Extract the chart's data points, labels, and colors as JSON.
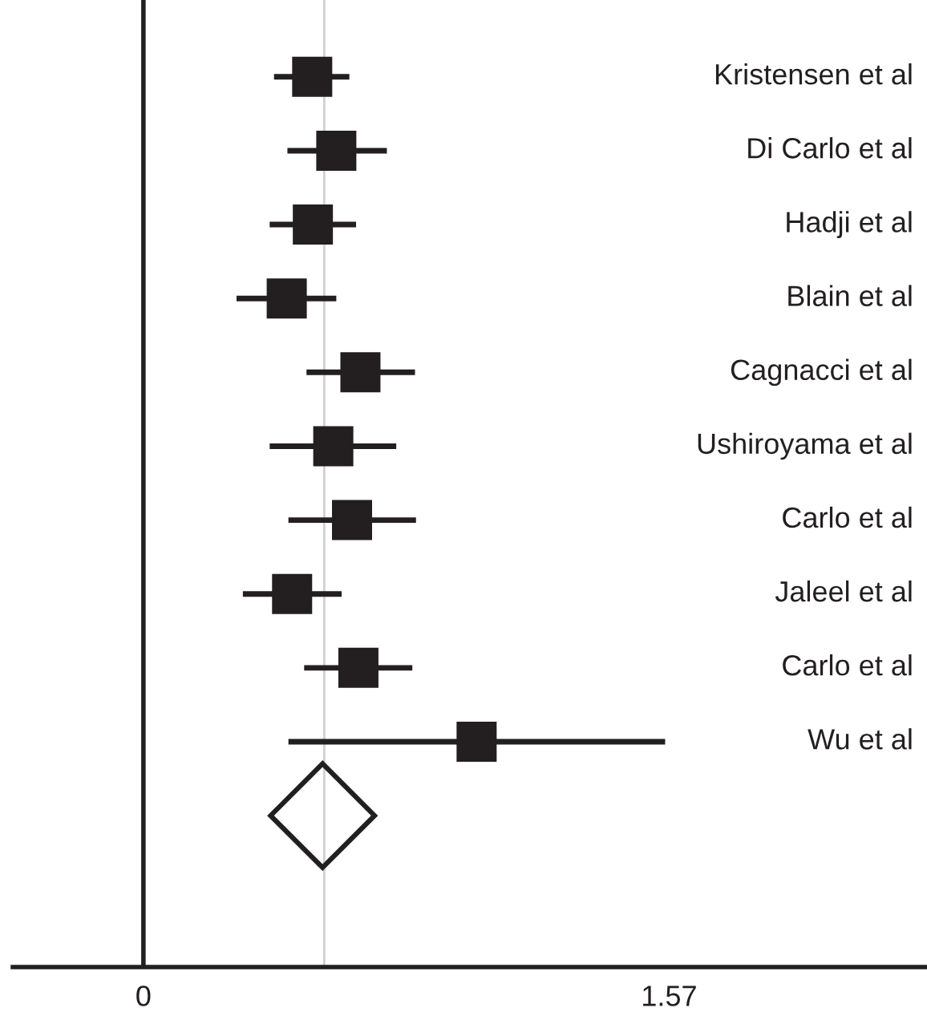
{
  "chart_data": {
    "type": "scatter",
    "orientation": "horizontal",
    "categories": [
      "Kristensen et al",
      "Di Carlo et al",
      "Hadji et al",
      "Blain et al",
      "Cagnacci et al",
      "Ushiroyama et al",
      "Carlo et al",
      "Jaleel et al",
      "Carlo et al",
      "Wu et al",
      null
    ],
    "series": [
      {
        "color": "#231f20",
        "marker": "square",
        "values": [
          0.504,
          0.576,
          0.506,
          0.428,
          0.648,
          0.567,
          0.623,
          0.444,
          0.642,
          0.995,
          null
        ],
        "errors": [
          [
            0.39,
            0.615
          ],
          [
            0.43,
            0.727
          ],
          [
            0.377,
            0.635
          ],
          [
            0.278,
            0.576
          ],
          [
            0.487,
            0.811
          ],
          [
            0.377,
            0.755
          ],
          [
            0.433,
            0.814
          ],
          [
            0.297,
            0.592
          ],
          [
            0.48,
            0.803
          ],
          [
            0.433,
            1.558
          ],
          null
        ]
      },
      {
        "color": "#231f20",
        "marker": "diamond",
        "values": [
          null,
          null,
          null,
          null,
          null,
          null,
          null,
          null,
          null,
          null,
          0.535
        ]
      }
    ],
    "xlim": [
      -0.39,
      2.34
    ],
    "xticks": [
      0,
      1.57
    ],
    "ref_lines": [
      {
        "axis": "x",
        "value": 0,
        "color": "#231f20"
      },
      {
        "axis": "x",
        "value": 0.54,
        "color": "#d0d0d0"
      }
    ],
    "grid": false
  }
}
